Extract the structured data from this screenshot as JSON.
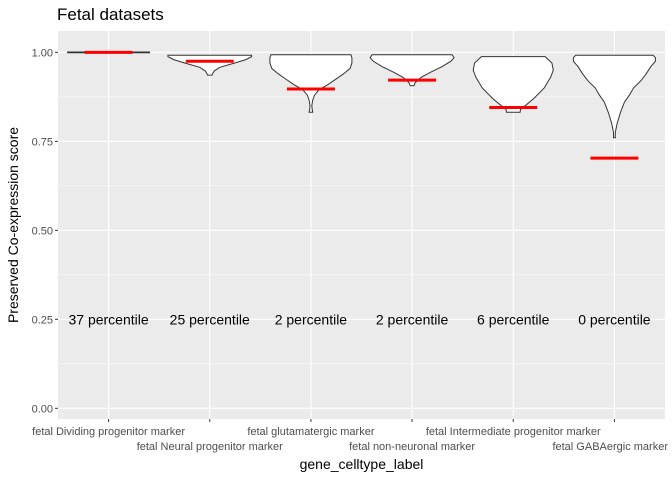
{
  "chart_data": {
    "type": "violin",
    "title": "Fetal datasets",
    "xlabel": "gene_celltype_label",
    "ylabel": "Preserved Co-expression score",
    "ylim": [
      -0.03,
      1.06
    ],
    "yticks": [
      0.0,
      0.25,
      0.5,
      0.75,
      1.0
    ],
    "ytick_labels": [
      "0.00",
      "0.25",
      "0.50",
      "0.75",
      "1.00"
    ],
    "grid": true,
    "panel_background": "#ebebeb",
    "grid_color": "#ffffff",
    "violin_outline_color": "#333333",
    "marker_color": "#ff0000",
    "categories": [
      "fetal Dividing progenitor marker",
      "fetal Neural progenitor marker",
      "fetal glutamatergic marker",
      "fetal non-neuronal marker",
      "fetal Intermediate progenitor marker",
      "fetal GABAergic marker"
    ],
    "marker_values": [
      1.0,
      0.975,
      0.897,
      0.922,
      0.845,
      0.703
    ],
    "annotations": [
      "37 percentile",
      "25 percentile",
      "2 percentile",
      "2 percentile",
      "6 percentile",
      "0 percentile"
    ],
    "annotation_y": 0.25,
    "violins": [
      {
        "min": 0.999,
        "max": 1.001,
        "profile": [
          [
            0.999,
            0.9
          ],
          [
            1.0,
            0.9
          ],
          [
            1.001,
            0.9
          ]
        ]
      },
      {
        "min": 0.936,
        "max": 0.992,
        "profile": [
          [
            0.936,
            0.05
          ],
          [
            0.94,
            0.06
          ],
          [
            0.948,
            0.1
          ],
          [
            0.958,
            0.22
          ],
          [
            0.97,
            0.55
          ],
          [
            0.98,
            0.8
          ],
          [
            0.988,
            0.92
          ],
          [
            0.992,
            0.92
          ]
        ]
      },
      {
        "min": 0.832,
        "max": 0.993,
        "profile": [
          [
            0.832,
            0.04
          ],
          [
            0.838,
            0.03
          ],
          [
            0.85,
            0.02
          ],
          [
            0.866,
            0.04
          ],
          [
            0.88,
            0.08
          ],
          [
            0.895,
            0.18
          ],
          [
            0.91,
            0.38
          ],
          [
            0.925,
            0.55
          ],
          [
            0.94,
            0.72
          ],
          [
            0.955,
            0.86
          ],
          [
            0.97,
            0.9
          ],
          [
            0.985,
            0.9
          ],
          [
            0.993,
            0.88
          ]
        ]
      },
      {
        "min": 0.906,
        "max": 0.993,
        "profile": [
          [
            0.906,
            0.04
          ],
          [
            0.915,
            0.07
          ],
          [
            0.93,
            0.2
          ],
          [
            0.945,
            0.42
          ],
          [
            0.96,
            0.66
          ],
          [
            0.975,
            0.85
          ],
          [
            0.985,
            0.92
          ],
          [
            0.993,
            0.88
          ]
        ]
      },
      {
        "min": 0.832,
        "max": 0.988,
        "profile": [
          [
            0.832,
            0.15
          ],
          [
            0.84,
            0.16
          ],
          [
            0.85,
            0.26
          ],
          [
            0.87,
            0.45
          ],
          [
            0.9,
            0.68
          ],
          [
            0.93,
            0.82
          ],
          [
            0.95,
            0.88
          ],
          [
            0.97,
            0.85
          ],
          [
            0.988,
            0.7
          ]
        ]
      },
      {
        "min": 0.76,
        "max": 0.992,
        "profile": [
          [
            0.76,
            0.02
          ],
          [
            0.775,
            0.02
          ],
          [
            0.8,
            0.06
          ],
          [
            0.83,
            0.13
          ],
          [
            0.86,
            0.22
          ],
          [
            0.88,
            0.33
          ],
          [
            0.9,
            0.42
          ],
          [
            0.92,
            0.58
          ],
          [
            0.94,
            0.7
          ],
          [
            0.96,
            0.8
          ],
          [
            0.975,
            0.9
          ],
          [
            0.985,
            0.9
          ],
          [
            0.992,
            0.85
          ]
        ]
      }
    ]
  }
}
